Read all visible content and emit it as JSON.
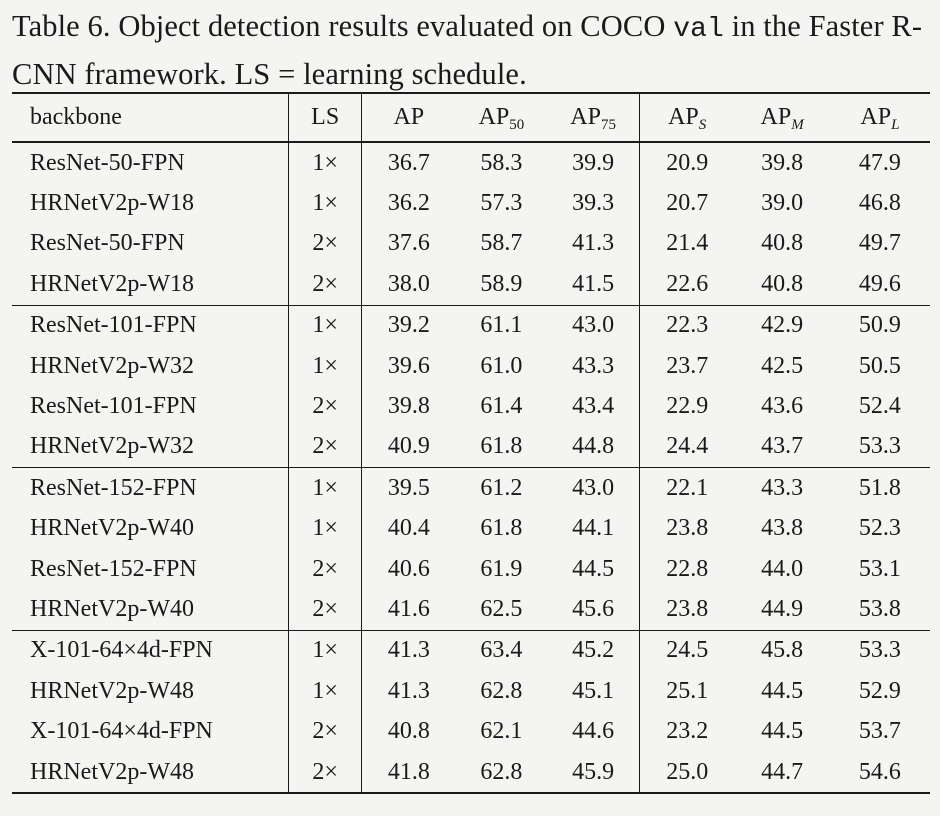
{
  "caption": {
    "prefix": "Table 6. Object detection results evaluated on COCO ",
    "code": "val",
    "suffix": " in the Faster R-CNN framework. LS = learning schedule."
  },
  "header": {
    "backbone": "backbone",
    "ls": "LS",
    "ap": "AP",
    "ap50_base": "AP",
    "ap50_sub": "50",
    "ap75_base": "AP",
    "ap75_sub": "75",
    "aps_base": "AP",
    "aps_sub": "S",
    "apm_base": "AP",
    "apm_sub": "M",
    "apl_base": "AP",
    "apl_sub": "L"
  },
  "groups": [
    {
      "rows": [
        {
          "backbone": "ResNet-50-FPN",
          "ls": "1×",
          "ap": "36.7",
          "ap50": "58.3",
          "ap75": "39.9",
          "aps": "20.9",
          "apm": "39.8",
          "apl": "47.9",
          "bold": []
        },
        {
          "backbone": "HRNetV2p-W18",
          "ls": "1×",
          "ap": "36.2",
          "ap50": "57.3",
          "ap75": "39.3",
          "aps": "20.7",
          "apm": "39.0",
          "apl": "46.8",
          "bold": []
        },
        {
          "backbone": "ResNet-50-FPN",
          "ls": "2×",
          "ap": "37.6",
          "ap50": "58.7",
          "ap75": "41.3",
          "aps": "21.4",
          "apm": "40.8",
          "apl": "49.7",
          "bold": [
            "apm",
            "apl"
          ]
        },
        {
          "backbone": "HRNetV2p-W18",
          "ls": "2×",
          "ap": "38.0",
          "ap50": "58.9",
          "ap75": "41.5",
          "aps": "22.6",
          "apm": "40.8",
          "apl": "49.6",
          "bold": [
            "ap",
            "ap50",
            "ap75",
            "aps",
            "apm"
          ]
        }
      ]
    },
    {
      "rows": [
        {
          "backbone": "ResNet-101-FPN",
          "ls": "1×",
          "ap": "39.2",
          "ap50": "61.1",
          "ap75": "43.0",
          "aps": "22.3",
          "apm": "42.9",
          "apl": "50.9",
          "bold": []
        },
        {
          "backbone": "HRNetV2p-W32",
          "ls": "1×",
          "ap": "39.6",
          "ap50": "61.0",
          "ap75": "43.3",
          "aps": "23.7",
          "apm": "42.5",
          "apl": "50.5",
          "bold": []
        },
        {
          "backbone": "ResNet-101-FPN",
          "ls": "2×",
          "ap": "39.8",
          "ap50": "61.4",
          "ap75": "43.4",
          "aps": "22.9",
          "apm": "43.6",
          "apl": "52.4",
          "bold": []
        },
        {
          "backbone": "HRNetV2p-W32",
          "ls": "2×",
          "ap": "40.9",
          "ap50": "61.8",
          "ap75": "44.8",
          "aps": "24.4",
          "apm": "43.7",
          "apl": "53.3",
          "bold": [
            "ap",
            "ap50",
            "ap75",
            "aps",
            "apm",
            "apl"
          ]
        }
      ]
    },
    {
      "rows": [
        {
          "backbone": "ResNet-152-FPN",
          "ls": "1×",
          "ap": "39.5",
          "ap50": "61.2",
          "ap75": "43.0",
          "aps": "22.1",
          "apm": "43.3",
          "apl": "51.8",
          "bold": []
        },
        {
          "backbone": "HRNetV2p-W40",
          "ls": "1×",
          "ap": "40.4",
          "ap50": "61.8",
          "ap75": "44.1",
          "aps": "23.8",
          "apm": "43.8",
          "apl": "52.3",
          "bold": []
        },
        {
          "backbone": "ResNet-152-FPN",
          "ls": "2×",
          "ap": "40.6",
          "ap50": "61.9",
          "ap75": "44.5",
          "aps": "22.8",
          "apm": "44.0",
          "apl": "53.1",
          "bold": []
        },
        {
          "backbone": "HRNetV2p-W40",
          "ls": "2×",
          "ap": "41.6",
          "ap50": "62.5",
          "ap75": "45.6",
          "aps": "23.8",
          "apm": "44.9",
          "apl": "53.8",
          "bold": [
            "ap",
            "ap50",
            "ap75",
            "aps",
            "apm",
            "apl"
          ]
        }
      ]
    },
    {
      "rows": [
        {
          "backbone": "X-101-64×4d-FPN",
          "ls": "1×",
          "ap": "41.3",
          "ap50": "63.4",
          "ap75": "45.2",
          "aps": "24.5",
          "apm": "45.8",
          "apl": "53.3",
          "bold": [
            "ap50",
            "apm"
          ]
        },
        {
          "backbone": "HRNetV2p-W48",
          "ls": "1×",
          "ap": "41.3",
          "ap50": "62.8",
          "ap75": "45.1",
          "aps": "25.1",
          "apm": "44.5",
          "apl": "52.9",
          "bold": [
            "aps"
          ]
        },
        {
          "backbone": "X-101-64×4d-FPN",
          "ls": "2×",
          "ap": "40.8",
          "ap50": "62.1",
          "ap75": "44.6",
          "aps": "23.2",
          "apm": "44.5",
          "apl": "53.7",
          "bold": []
        },
        {
          "backbone": "HRNetV2p-W48",
          "ls": "2×",
          "ap": "41.8",
          "ap50": "62.8",
          "ap75": "45.9",
          "aps": "25.0",
          "apm": "44.7",
          "apl": "54.6",
          "bold": [
            "ap",
            "ap75",
            "apl"
          ]
        }
      ]
    }
  ]
}
